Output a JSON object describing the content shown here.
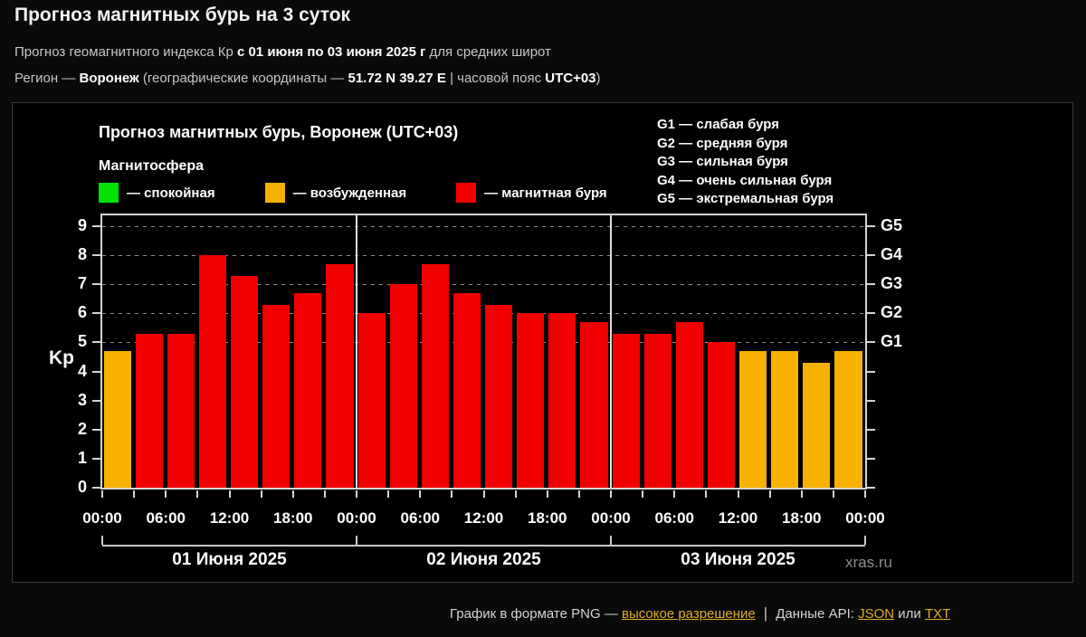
{
  "header": {
    "title": "Прогноз магнитных бурь на 3 суток",
    "subtitle": {
      "prefix": "Прогноз геомагнитного индекса Кр ",
      "period": "с 01 июня по 03 июня 2025 г",
      "suffix": " для средних широт"
    },
    "region": {
      "prefix": "Регион — ",
      "name": "Воронеж",
      "mid": " (географические координаты — ",
      "coords": "51.72 N 39.27 E",
      "mid2": " | часовой пояс ",
      "timezone": "UTC+03",
      "suffix": ")"
    }
  },
  "chart": {
    "title": "Прогноз магнитных бурь, Воронеж (UTC+03)",
    "legend_title": "Магнитосфера",
    "watermark": "xras.ru"
  },
  "chart_data": {
    "type": "bar",
    "title": "Прогноз магнитных бурь, Воронеж (UTC+03)",
    "ylabel": "Kp",
    "ylim": [
      0,
      9.37
    ],
    "yticks": [
      0,
      1,
      2,
      3,
      4,
      5,
      6,
      7,
      8,
      9
    ],
    "gridlines": [
      5,
      6,
      7,
      8,
      9
    ],
    "right_axis": [
      {
        "kp": 9,
        "label": "G5"
      },
      {
        "kp": 8,
        "label": "G4"
      },
      {
        "kp": 7,
        "label": "G3"
      },
      {
        "kp": 6,
        "label": "G2"
      },
      {
        "kp": 5,
        "label": "G1"
      }
    ],
    "g_legend": [
      "G1 — слабая буря",
      "G2 — средняя буря",
      "G3 — сильная буря",
      "G4 — очень сильная буря",
      "G5 — экстремальная буря"
    ],
    "legend": [
      {
        "status": "quiet",
        "label": "— спокойная",
        "color": "#00e100"
      },
      {
        "status": "excited",
        "label": "— возбужденная",
        "color": "#f7b200"
      },
      {
        "status": "storm",
        "label": "— магнитная буря",
        "color": "#f00000"
      }
    ],
    "status_colors": {
      "quiet": "#00e100",
      "excited": "#f7b200",
      "storm": "#f00000"
    },
    "x_time_labels": [
      "00:00",
      "06:00",
      "12:00",
      "18:00",
      "00:00",
      "06:00",
      "12:00",
      "18:00",
      "00:00",
      "06:00",
      "12:00",
      "18:00",
      "00:00"
    ],
    "days": [
      "01 Июня 2025",
      "02 Июня 2025",
      "03 Июня 2025"
    ],
    "values": [
      4.7,
      5.3,
      5.3,
      8.0,
      7.3,
      6.3,
      6.7,
      7.7,
      6.0,
      7.0,
      7.7,
      6.7,
      6.3,
      6.0,
      6.0,
      5.7,
      5.3,
      5.3,
      5.7,
      5.0,
      4.7,
      4.7,
      4.3,
      4.7
    ],
    "statuses": [
      "excited",
      "storm",
      "storm",
      "storm",
      "storm",
      "storm",
      "storm",
      "storm",
      "storm",
      "storm",
      "storm",
      "storm",
      "storm",
      "storm",
      "storm",
      "storm",
      "storm",
      "storm",
      "storm",
      "storm",
      "excited",
      "excited",
      "excited",
      "excited"
    ],
    "bars_per_day": 8
  },
  "footer": {
    "png_text": "График в формате PNG — ",
    "high_res_link": "высокое разрешение",
    "separator": "|",
    "api_text": "Данные API: ",
    "json_link": "JSON",
    "or_text": " или ",
    "txt_link": "TXT"
  }
}
